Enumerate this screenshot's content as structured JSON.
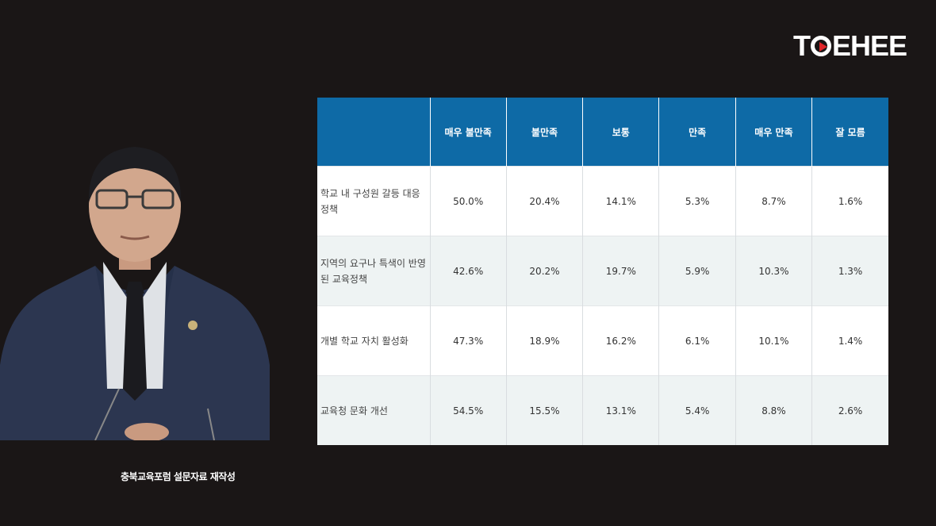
{
  "logo": {
    "part1": "T",
    "part2": "EHEE"
  },
  "caption": "충북교육포럼 설문자료 재작성",
  "colors": {
    "header": "#0e6aa6",
    "background": "#1a1616",
    "stripe": "#eef3f3",
    "logo_accent": "#e0262a"
  },
  "chart_data": {
    "type": "table",
    "columns": [
      "",
      "매우 불만족",
      "불만족",
      "보통",
      "만족",
      "매우 만족",
      "잘 모름"
    ],
    "rows": [
      {
        "label": "학교 내 구성원 갈등 대응 정책",
        "values": [
          "50.0%",
          "20.4%",
          "14.1%",
          "5.3%",
          "8.7%",
          "1.6%"
        ]
      },
      {
        "label": "지역의 요구나 특색이 반영된 교육정책",
        "values": [
          "42.6%",
          "20.2%",
          "19.7%",
          "5.9%",
          "10.3%",
          "1.3%"
        ]
      },
      {
        "label": "개별 학교 자치 활성화",
        "values": [
          "47.3%",
          "18.9%",
          "16.2%",
          "6.1%",
          "10.1%",
          "1.4%"
        ]
      },
      {
        "label": "교육청 문화 개선",
        "values": [
          "54.5%",
          "15.5%",
          "13.1%",
          "5.4%",
          "8.8%",
          "2.6%"
        ]
      }
    ]
  }
}
